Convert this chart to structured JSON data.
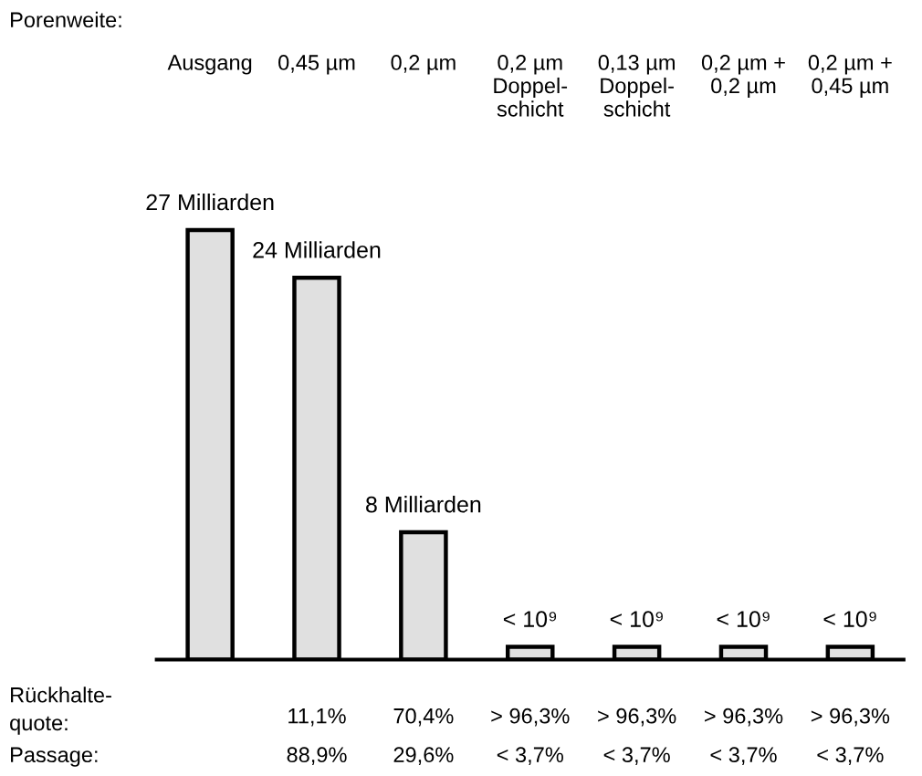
{
  "chart_data": {
    "type": "bar",
    "categories": [
      "Ausgang",
      "0,45 µm",
      "0,2 µm",
      "0,2 µm\nDoppel-\nschicht",
      "0,13 µm\nDoppel-\nschicht",
      "0,2 µm +\n0,2 µm",
      "0,2 µm +\n0,45 µm"
    ],
    "values": [
      27,
      24,
      8,
      0.8,
      0.8,
      0.8,
      0.8
    ],
    "value_labels": [
      "27 Milliarden",
      "24 Milliarden",
      "8 Milliarden",
      "< 10⁹",
      "< 10⁹",
      "< 10⁹",
      "< 10⁹"
    ],
    "color": "#e0e0e0",
    "annotations": [
      "Porenweite:",
      "Rückhalte-\nquote:",
      "Passage:",
      "11,1%",
      "70,4%",
      "> 96,3%",
      "> 96,3%",
      "> 96,3%",
      "> 96,3%",
      "88,9%",
      "29,6%",
      "< 3,7%",
      "< 3,7%",
      "< 3,7%",
      "< 3,7%"
    ]
  }
}
